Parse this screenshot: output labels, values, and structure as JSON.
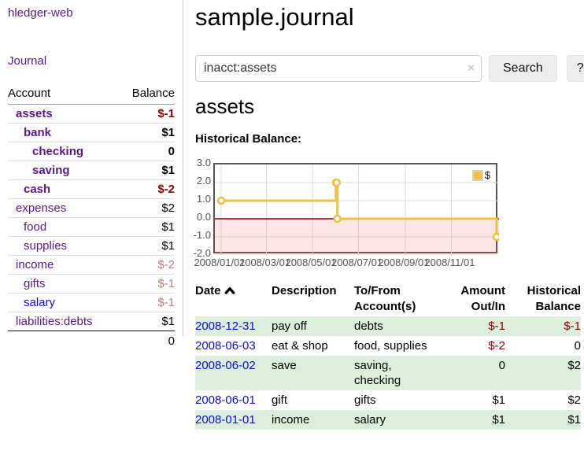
{
  "app": {
    "title": "hledger-web"
  },
  "sidebar": {
    "journal_link": "Journal",
    "columns": {
      "account": "Account",
      "balance": "Balance"
    },
    "accounts": [
      {
        "name": "assets",
        "balance": "$-1"
      },
      {
        "name": "bank",
        "balance": "$1"
      },
      {
        "name": "checking",
        "balance": "0"
      },
      {
        "name": "saving",
        "balance": "$1"
      },
      {
        "name": "cash",
        "balance": "$-2"
      },
      {
        "name": "expenses",
        "balance": "$2"
      },
      {
        "name": "food",
        "balance": "$1"
      },
      {
        "name": "supplies",
        "balance": "$1"
      },
      {
        "name": "income",
        "balance": "$-2"
      },
      {
        "name": "gifts",
        "balance": "$-1"
      },
      {
        "name": "salary",
        "balance": "$-1"
      },
      {
        "name": "liabilities:debts",
        "balance": "$1"
      }
    ],
    "total": "0"
  },
  "main": {
    "title": "sample.journal",
    "search": {
      "value": "inacct:assets",
      "clear_label": "×",
      "button_label": "Search",
      "help_label": "?"
    },
    "account_heading": "assets",
    "chart_label": "Historical Balance:"
  },
  "chart_data": {
    "type": "line",
    "step": true,
    "title": "Historical Balance",
    "series": [
      {
        "name": "$",
        "color": "#edc240",
        "points": [
          [
            "2008-01-01",
            1
          ],
          [
            "2008-06-01",
            2
          ],
          [
            "2008-06-02",
            2
          ],
          [
            "2008-06-03",
            0
          ],
          [
            "2008-12-31",
            -1
          ]
        ]
      }
    ],
    "xrange": [
      "2008-01-01",
      "2008-12-31"
    ],
    "ylim": [
      -2,
      3
    ],
    "yticks": [
      {
        "value": 3,
        "label": "3.0"
      },
      {
        "value": 2,
        "label": "2.0"
      },
      {
        "value": 1,
        "label": "1.0"
      },
      {
        "value": 0,
        "label": "0.0"
      },
      {
        "value": -1,
        "label": "-1.0"
      },
      {
        "value": -2,
        "label": "-2.0"
      }
    ],
    "xticks": [
      {
        "date": "2008-01-01",
        "label": "2008/01/01"
      },
      {
        "date": "2008-03-01",
        "label": "2008/03/01"
      },
      {
        "date": "2008-05-01",
        "label": "2008/05/01"
      },
      {
        "date": "2008-07-01",
        "label": "2008/07/01"
      },
      {
        "date": "2008-09-01",
        "label": "2008/09/01"
      },
      {
        "date": "2008-11-01",
        "label": "2008/11/01"
      }
    ],
    "legend": {
      "position": "top-right",
      "entries": [
        "$"
      ]
    },
    "grid": true,
    "negative_region_fill": "rgba(239,100,100,0.17)",
    "zero_line_color": "#8b0000"
  },
  "register": {
    "headers": {
      "date": "Date",
      "description": "Description",
      "account": "To/From Account(s)",
      "amount": "Amount Out/In",
      "balance": "Historical Balance"
    },
    "rows": [
      {
        "date": "2008-12-31",
        "description": "pay off",
        "accounts": "debts",
        "amount": "$-1",
        "balance": "$-1"
      },
      {
        "date": "2008-06-03",
        "description": "eat & shop",
        "accounts": "food, supplies",
        "amount": "$-2",
        "balance": "0"
      },
      {
        "date": "2008-06-02",
        "description": "save",
        "accounts": "saving, checking",
        "amount": "0",
        "balance": "$2"
      },
      {
        "date": "2008-06-01",
        "description": "gift",
        "accounts": "gifts",
        "amount": "$1",
        "balance": "$2"
      },
      {
        "date": "2008-01-01",
        "description": "income",
        "accounts": "salary",
        "amount": "$1",
        "balance": "$1"
      }
    ]
  },
  "colors": {
    "purple": "#551a8b",
    "blue": "#0b0bdd",
    "strong_neg": "#8b0000",
    "soft_neg": "#bc7f7f",
    "row_green": "#ddeedd",
    "gold": "#edc240",
    "grid": "#dddddd",
    "plot_border": "#555555",
    "zero_red": "#8b0000",
    "button_bg": "#ededed"
  }
}
